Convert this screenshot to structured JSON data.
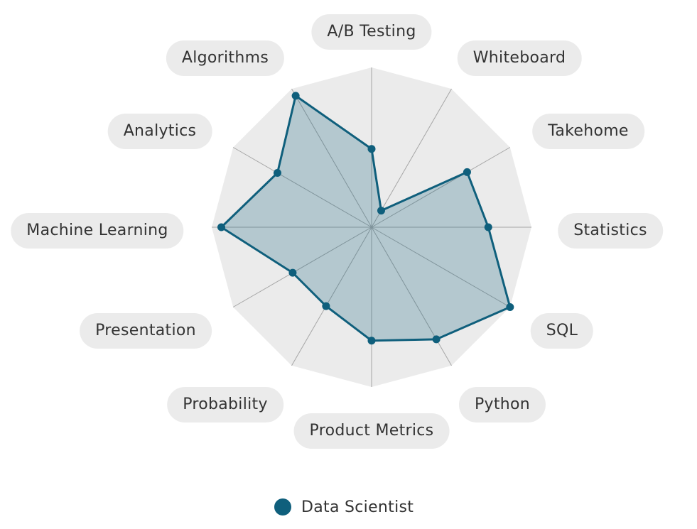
{
  "chart_data": {
    "type": "radar",
    "categories": [
      "A/B Testing",
      "Whiteboard",
      "Takehome",
      "Statistics",
      "SQL",
      "Python",
      "Product Metrics",
      "Probability",
      "Presentation",
      "Machine Learning",
      "Analytics",
      "Algorithms"
    ],
    "series": [
      {
        "name": "Data Scientist",
        "values": [
          0.49,
          0.12,
          0.69,
          0.73,
          1.0,
          0.81,
          0.71,
          0.57,
          0.57,
          0.94,
          0.68,
          0.95
        ]
      }
    ],
    "rlim": [
      0,
      1
    ],
    "grid": true,
    "legend_position": "bottom"
  },
  "colors": {
    "series": "#0f5f7c",
    "series_fill": "rgba(15, 95, 124, 0.25)",
    "grid_fill": "#ebebeb",
    "spokes": "#a6a6a6"
  }
}
